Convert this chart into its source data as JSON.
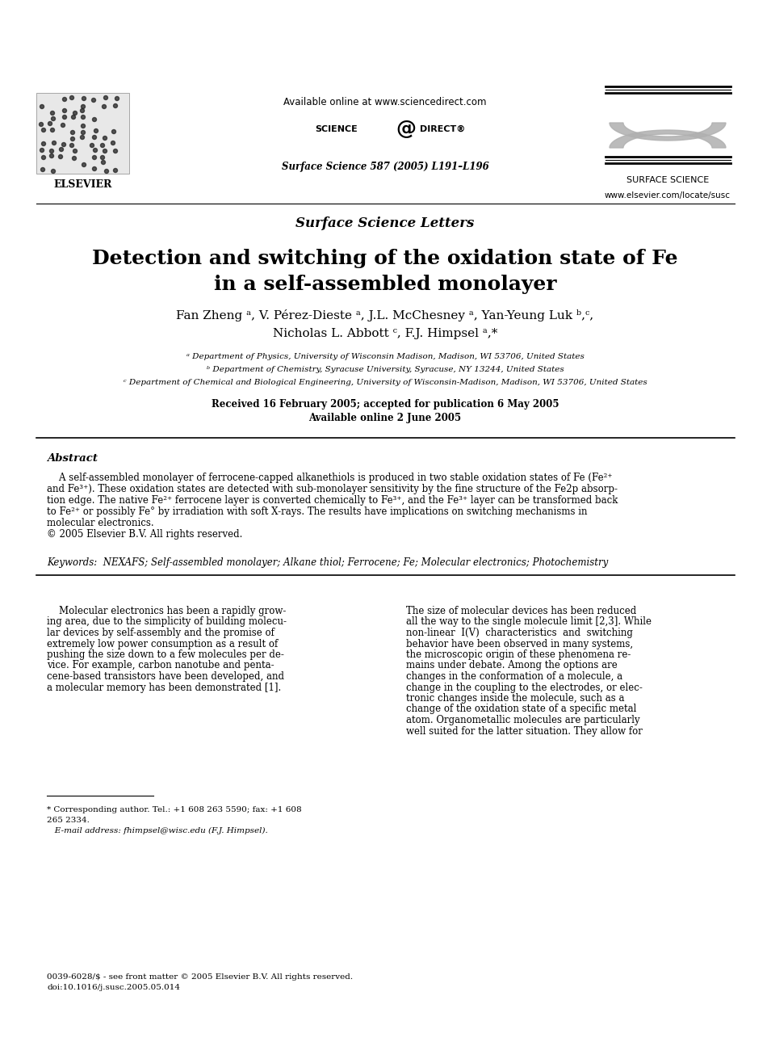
{
  "bg_color": "#ffffff",
  "title_line1": "Detection and switching of the oxidation state of Fe",
  "title_line2": "in a self-assembled monolayer",
  "authors_line1": "Fan Zheng ᵃ, V. Pérez-Dieste ᵃ, J.L. McChesney ᵃ, Yan-Yeung Luk ᵇ,ᶜ,",
  "authors_line2": "Nicholas L. Abbott ᶜ, F.J. Himpsel ᵃ,*",
  "affil_a": "ᵃ Department of Physics, University of Wisconsin Madison, Madison, WI 53706, United States",
  "affil_b": "ᵇ Department of Chemistry, Syracuse University, Syracuse, NY 13244, United States",
  "affil_c": "ᶜ Department of Chemical and Biological Engineering, University of Wisconsin-Madison, Madison, WI 53706, United States",
  "dates": "Received 16 February 2005; accepted for publication 6 May 2005",
  "available": "Available online 2 June 2005",
  "journal_header": "Surface Science Letters",
  "journal_ref": "Surface Science 587 (2005) L191–L196",
  "available_online": "Available online at www.sciencedirect.com",
  "website": "www.elsevier.com/locate/susc",
  "abstract_label": "Abstract",
  "keywords": "Keywords:  NEXAFS; Self-assembled monolayer; Alkane thiol; Ferrocene; Fe; Molecular electronics; Photochemistry",
  "elsevier_text": "ELSEVIER",
  "surface_science_text": "SURFACE SCIENCE"
}
